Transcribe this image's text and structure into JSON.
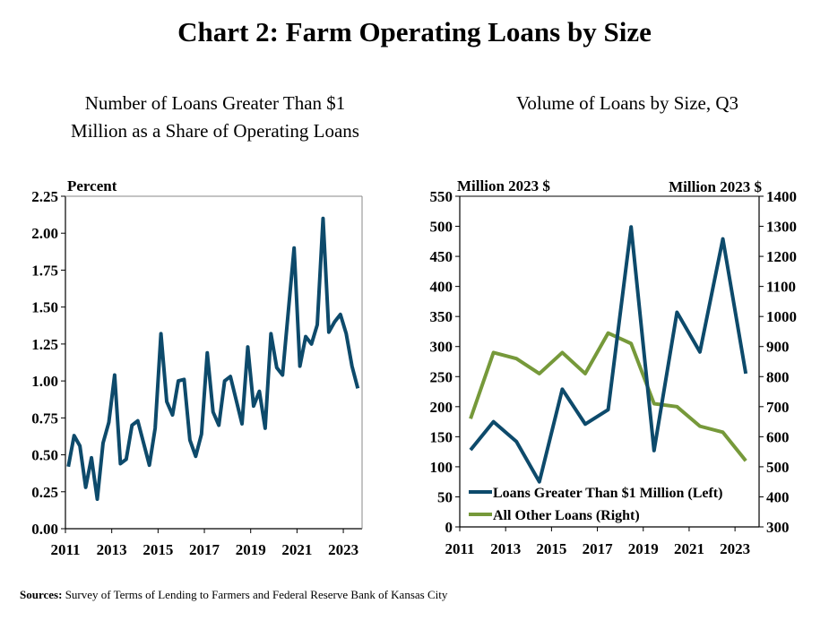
{
  "title": "Chart 2: Farm Operating Loans by Size",
  "source_label": "Sources:",
  "source_text": "Survey of Terms of Lending to Farmers and Federal Reserve Bank of Kansas City",
  "chart_data": [
    {
      "type": "line",
      "title": "Number of Loans Greater Than $1 Million as a Share of Operating Loans",
      "title_lines": [
        "Number of Loans Greater Than $1",
        "Million as a Share of Operating Loans"
      ],
      "ylabel": "Percent",
      "xlabel": "",
      "frequency": "quarterly",
      "x_start": "2011 Q1",
      "x_end": "2023 Q3",
      "xticks": [
        "2011",
        "2013",
        "2015",
        "2017",
        "2019",
        "2021",
        "2023"
      ],
      "ylim": [
        0,
        2.25
      ],
      "yticks": [
        "0.00",
        "0.25",
        "0.50",
        "0.75",
        "1.00",
        "1.25",
        "1.50",
        "1.75",
        "2.00",
        "2.25"
      ],
      "grid": false,
      "series": [
        {
          "color": "#0d4a6b",
          "values": [
            0.42,
            0.63,
            0.56,
            0.28,
            0.48,
            0.2,
            0.58,
            0.72,
            1.04,
            0.44,
            0.47,
            0.7,
            0.73,
            0.58,
            0.43,
            0.68,
            1.32,
            0.86,
            0.77,
            1.0,
            1.01,
            0.6,
            0.49,
            0.64,
            1.19,
            0.79,
            0.7,
            1.0,
            1.03,
            0.87,
            0.71,
            1.23,
            0.83,
            0.93,
            0.68,
            1.32,
            1.09,
            1.04,
            1.47,
            1.9,
            1.1,
            1.3,
            1.25,
            1.38,
            2.1,
            1.33,
            1.4,
            1.45,
            1.32,
            1.1,
            0.95
          ]
        }
      ]
    },
    {
      "type": "line",
      "title": "Volume of Loans by Size, Q3",
      "ylabel_left": "Million  2023 $",
      "ylabel_right": "Million  2023 $",
      "xlabel": "",
      "categories": [
        2011,
        2012,
        2013,
        2014,
        2015,
        2016,
        2017,
        2018,
        2019,
        2020,
        2021,
        2022,
        2023
      ],
      "xticks": [
        "2011",
        "2013",
        "2015",
        "2017",
        "2019",
        "2021",
        "2023"
      ],
      "ylim_left": [
        0,
        550
      ],
      "yticks_left": [
        "0",
        "50",
        "100",
        "150",
        "200",
        "250",
        "300",
        "350",
        "400",
        "450",
        "500",
        "550"
      ],
      "ylim_right": [
        300,
        1400
      ],
      "yticks_right": [
        "300",
        "400",
        "500",
        "600",
        "700",
        "800",
        "900",
        "1000",
        "1100",
        "1200",
        "1300",
        "1400"
      ],
      "grid": false,
      "legend_position": "bottom-left",
      "series": [
        {
          "name": "Loans Greater Than $1 Million (Left)",
          "axis": "left",
          "color": "#0d4a6b",
          "values": [
            128,
            175,
            142,
            75,
            229,
            171,
            195,
            499,
            127,
            357,
            291,
            479,
            255
          ]
        },
        {
          "name": "All Other Loans (Right)",
          "axis": "right",
          "color": "#76993a",
          "values": [
            660,
            880,
            860,
            810,
            880,
            810,
            945,
            910,
            710,
            700,
            635,
            615,
            520
          ]
        }
      ]
    }
  ]
}
